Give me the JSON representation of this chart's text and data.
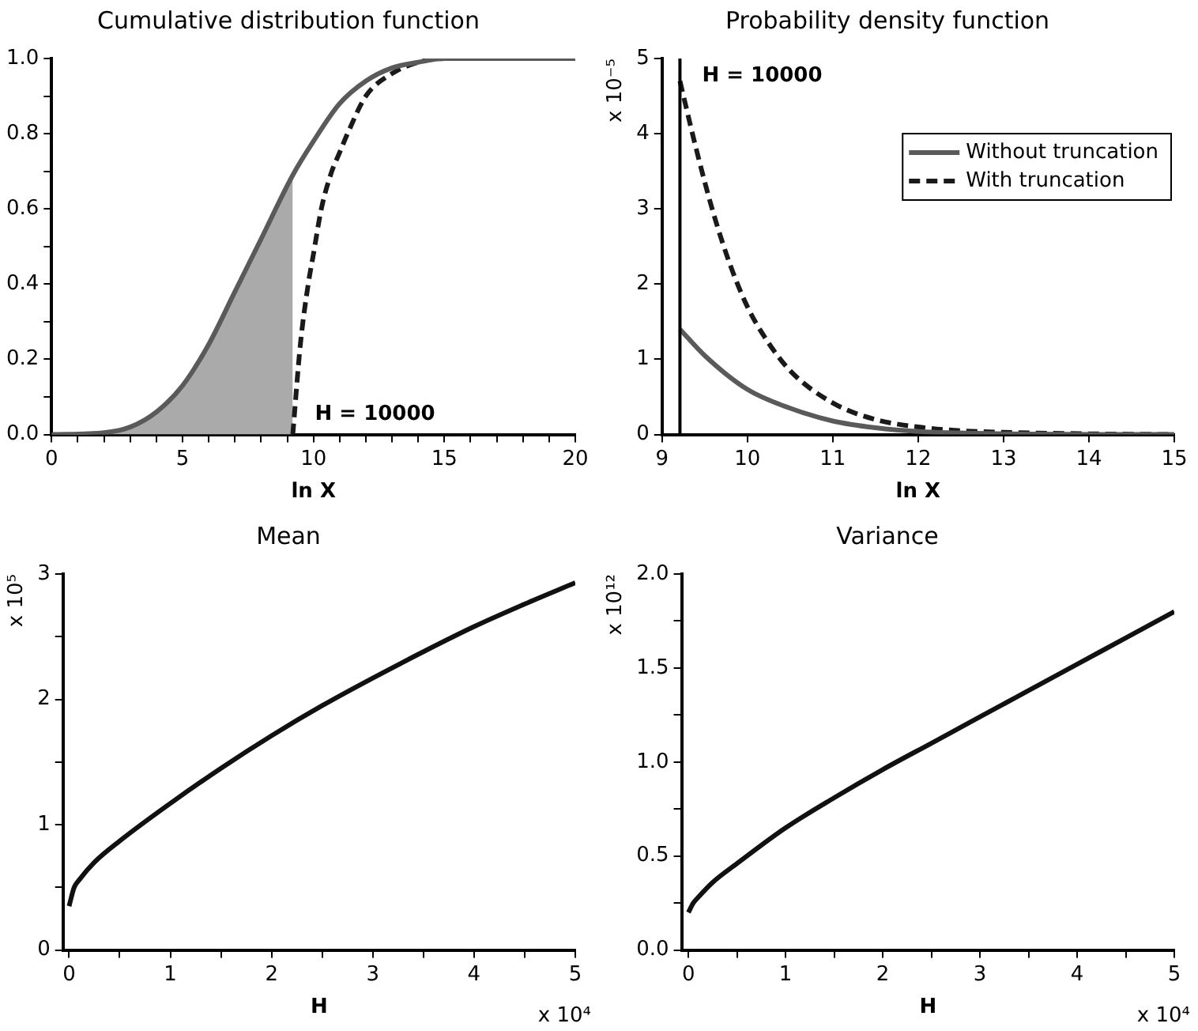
{
  "chart_data": [
    {
      "type": "line",
      "title": "Cumulative distribution function",
      "xlabel": "ln X",
      "xlim": [
        0,
        20
      ],
      "ylim": [
        0,
        1
      ],
      "marker": "none",
      "xticks": [
        0,
        {
          "value": 1,
          "label": null
        },
        {
          "value": 2,
          "label": null
        },
        {
          "value": 3,
          "label": null
        },
        {
          "value": 4,
          "label": null
        },
        5,
        {
          "value": 6,
          "label": null
        },
        {
          "value": 7,
          "label": null
        },
        {
          "value": 8,
          "label": null
        },
        {
          "value": 9,
          "label": null
        },
        10,
        {
          "value": 11,
          "label": null
        },
        {
          "value": 12,
          "label": null
        },
        {
          "value": 13,
          "label": null
        },
        {
          "value": 14,
          "label": null
        },
        15,
        {
          "value": 16,
          "label": null
        },
        {
          "value": 17,
          "label": null
        },
        {
          "value": 18,
          "label": null
        },
        {
          "value": 19,
          "label": null
        },
        20
      ],
      "yticks": [
        {
          "value": 0,
          "label": "0.0"
        },
        {
          "value": 0.1,
          "label": null
        },
        {
          "value": 0.2,
          "label": "0.2"
        },
        {
          "value": 0.3,
          "label": null
        },
        {
          "value": 0.4,
          "label": "0.4"
        },
        {
          "value": 0.5,
          "label": null
        },
        {
          "value": 0.6,
          "label": "0.6"
        },
        {
          "value": 0.7,
          "label": null
        },
        {
          "value": 0.8,
          "label": "0.8"
        },
        {
          "value": 0.9,
          "label": null
        },
        {
          "value": 1,
          "label": "1.0"
        }
      ],
      "series": [
        {
          "type": "area",
          "color": "#aaaaaa",
          "x": [
            0,
            2,
            3,
            4,
            5,
            6,
            7,
            8,
            9.21
          ],
          "values": [
            0,
            0.005,
            0.02,
            0.06,
            0.13,
            0.24,
            0.38,
            0.52,
            0.69
          ]
        },
        {
          "color": "#5a5a5a",
          "line_style": "solid",
          "x": [
            0,
            2,
            3,
            4,
            5,
            6,
            7,
            8,
            9.21,
            10,
            11,
            12,
            13,
            14,
            15,
            20
          ],
          "values": [
            0,
            0.005,
            0.02,
            0.06,
            0.13,
            0.24,
            0.38,
            0.52,
            0.69,
            0.78,
            0.88,
            0.94,
            0.975,
            0.99,
            1,
            1
          ]
        },
        {
          "color": "#1a1a1a",
          "line_style": "dashed",
          "x": [
            9.21,
            9.5,
            9.8,
            10,
            10.3,
            10.7,
            11,
            11.3,
            12,
            13,
            14,
            15,
            20
          ],
          "values": [
            0,
            0.24,
            0.4,
            0.48,
            0.6,
            0.7,
            0.75,
            0.8,
            0.9,
            0.96,
            0.99,
            1,
            1
          ]
        }
      ],
      "annotations": [
        {
          "text": "H = 10000",
          "x": 9.21,
          "y": 0
        }
      ]
    },
    {
      "type": "line",
      "title": "Probability density function",
      "xlabel": "ln X",
      "ylabel": "x 10⁻⁵",
      "xlim": [
        9,
        15
      ],
      "ylim": [
        0,
        5
      ],
      "marker": "none",
      "legend": "top right",
      "xticks": [
        9,
        10,
        11,
        12,
        13,
        14,
        15
      ],
      "yticks": [
        0,
        1,
        2,
        3,
        4,
        5
      ],
      "series": [
        {
          "name": "Without truncation",
          "color": "#5a5a5a",
          "line_style": "solid",
          "x": [
            9.21,
            9.5,
            10,
            10.5,
            11,
            11.5,
            12,
            13,
            14,
            15
          ],
          "values": [
            1.4,
            1.05,
            0.6,
            0.35,
            0.18,
            0.09,
            0.04,
            0.01,
            0,
            0
          ]
        },
        {
          "name": "With truncation",
          "color": "#1a1a1a",
          "line_style": "dashed",
          "x": [
            9.21,
            9.4,
            9.6,
            9.8,
            10,
            10.2,
            10.5,
            11,
            11.5,
            12,
            12.5,
            13,
            14,
            15
          ],
          "values": [
            4.7,
            3.8,
            2.95,
            2.25,
            1.7,
            1.3,
            0.85,
            0.42,
            0.2,
            0.1,
            0.05,
            0.03,
            0.01,
            0
          ]
        }
      ],
      "ref_lines": [
        {
          "axis": "x",
          "value": 9.21,
          "color": "#000000"
        }
      ],
      "annotations": [
        {
          "text": "H = 10000",
          "x": 9.21,
          "y": 4.5
        }
      ]
    },
    {
      "type": "line",
      "title": "Mean",
      "xlabel": "H",
      "ylabel": "x 10⁵",
      "xlim": [
        -0.06,
        5
      ],
      "ylim": [
        0,
        3
      ],
      "marker": "none",
      "xticks": [
        0,
        {
          "value": 0.5,
          "label": null
        },
        1,
        {
          "value": 1.5,
          "label": null
        },
        2,
        {
          "value": 2.5,
          "label": null
        },
        3,
        {
          "value": 3.5,
          "label": null
        },
        4,
        {
          "value": 4.5,
          "label": null
        },
        5
      ],
      "yticks": [
        0,
        {
          "value": 0.5,
          "label": null
        },
        1,
        {
          "value": 1.5,
          "label": null
        },
        2,
        {
          "value": 2.5,
          "label": null
        },
        3
      ],
      "series": [
        {
          "color": "#111111",
          "line_style": "solid",
          "x": [
            0,
            0.05,
            0.1,
            0.25,
            0.5,
            1,
            1.5,
            2,
            2.5,
            3,
            3.5,
            4,
            4.5,
            5
          ],
          "values": [
            0.35,
            0.5,
            0.56,
            0.7,
            0.87,
            1.17,
            1.45,
            1.71,
            1.95,
            2.17,
            2.38,
            2.58,
            2.76,
            2.93
          ]
        }
      ],
      "annotations": [
        "x 10⁴"
      ]
    },
    {
      "type": "line",
      "title": "Variance",
      "xlabel": "H",
      "ylabel": "x 10¹²",
      "xlim": [
        -0.07,
        5
      ],
      "ylim": [
        0,
        2
      ],
      "marker": "none",
      "xticks": [
        0,
        {
          "value": 0.5,
          "label": null
        },
        1,
        {
          "value": 1.5,
          "label": null
        },
        2,
        {
          "value": 2.5,
          "label": null
        },
        3,
        {
          "value": 3.5,
          "label": null
        },
        4,
        {
          "value": 4.5,
          "label": null
        },
        5
      ],
      "yticks": [
        {
          "value": 0,
          "label": "0.0"
        },
        {
          "value": 0.25,
          "label": null
        },
        {
          "value": 0.5,
          "label": "0.5"
        },
        {
          "value": 0.75,
          "label": null
        },
        {
          "value": 1,
          "label": "1.0"
        },
        {
          "value": 1.25,
          "label": null
        },
        {
          "value": 1.5,
          "label": "1.5"
        },
        {
          "value": 1.75,
          "label": null
        },
        {
          "value": 2,
          "label": "2.0"
        }
      ],
      "series": [
        {
          "color": "#111111",
          "line_style": "solid",
          "x": [
            0,
            0.05,
            0.1,
            0.25,
            0.5,
            1,
            1.5,
            2,
            2.5,
            3,
            3.5,
            4,
            4.5,
            5
          ],
          "values": [
            0.2,
            0.25,
            0.28,
            0.36,
            0.46,
            0.65,
            0.81,
            0.96,
            1.1,
            1.24,
            1.38,
            1.52,
            1.66,
            1.8
          ]
        }
      ],
      "annotations": [
        "x 10⁴"
      ]
    }
  ]
}
